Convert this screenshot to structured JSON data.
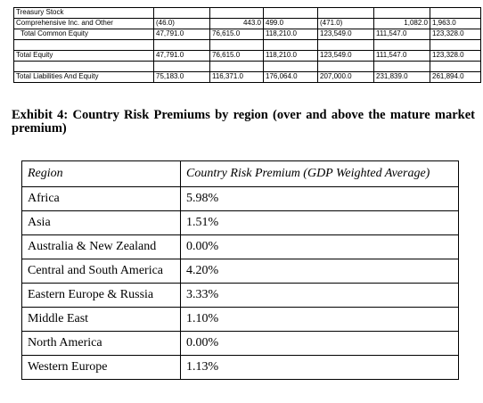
{
  "balance_sheet": {
    "rows": [
      {
        "label": "Treasury Stock",
        "indent": false,
        "values": [
          "",
          "",
          "",
          "",
          "",
          ""
        ]
      },
      {
        "label": "Comprehensive Inc. and Other",
        "indent": false,
        "values": [
          "(46.0)",
          "443.0",
          "499.0",
          "(471.0)",
          "1,082.0",
          "1,963.0"
        ]
      },
      {
        "label": "Total Common Equity",
        "indent": true,
        "values": [
          "47,791.0",
          "76,615.0",
          "118,210.0",
          "123,549.0",
          "111,547.0",
          "123,328.0"
        ]
      },
      {
        "label": "",
        "indent": false,
        "values": [
          "",
          "",
          "",
          "",
          "",
          ""
        ]
      },
      {
        "label": "Total Equity",
        "indent": false,
        "values": [
          "47,791.0",
          "76,615.0",
          "118,210.0",
          "123,549.0",
          "111,547.0",
          "123,328.0"
        ]
      },
      {
        "label": "",
        "indent": false,
        "values": [
          "",
          "",
          "",
          "",
          "",
          ""
        ]
      },
      {
        "label": "Total Liabilities And Equity",
        "indent": false,
        "values": [
          "75,183.0",
          "116,371.0",
          "176,064.0",
          "207,000.0",
          "231,839.0",
          "261,894.0"
        ]
      }
    ]
  },
  "exhibit": {
    "title": "Exhibit 4: Country Risk Premiums by region (over and above the mature market premium)"
  },
  "crp_table": {
    "headers": [
      "Region",
      "Country Risk Premium (GDP Weighted Average)"
    ],
    "rows": [
      [
        "Africa",
        "5.98%"
      ],
      [
        "Asia",
        "1.51%"
      ],
      [
        "Australia & New Zealand",
        "0.00%"
      ],
      [
        "Central and South America",
        "4.20%"
      ],
      [
        "Eastern Europe & Russia",
        "3.33%"
      ],
      [
        "Middle East",
        "1.10%"
      ],
      [
        "North America",
        "0.00%"
      ],
      [
        "Western Europe",
        "1.13%"
      ]
    ]
  }
}
